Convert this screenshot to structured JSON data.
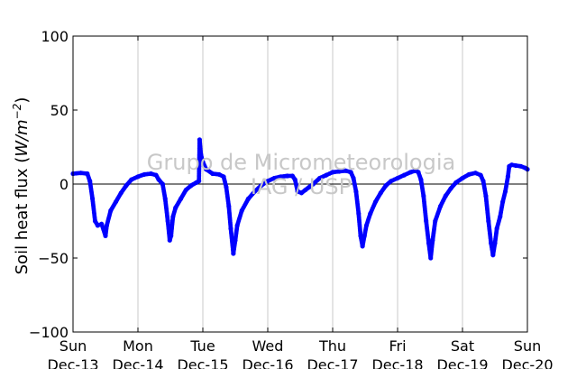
{
  "chart_data": {
    "type": "scatter",
    "ylabel": "Soil heat flux (W/m⁻²)",
    "ylabel_plain": "Soil heat flux (",
    "ylabel_unit": "W/m",
    "ylabel_exp": "−2",
    "ylabel_close": ")",
    "ylim": [
      -100,
      100
    ],
    "yticks": [
      {
        "value": 100,
        "label": "100"
      },
      {
        "value": 50,
        "label": "50"
      },
      {
        "value": 0,
        "label": "0"
      },
      {
        "value": -50,
        "label": "−50"
      },
      {
        "value": -100,
        "label": "−100"
      }
    ],
    "xlim": [
      0,
      7
    ],
    "xticks": [
      {
        "value": 0,
        "day": "Sun",
        "date": "Dec-13"
      },
      {
        "value": 1,
        "day": "Mon",
        "date": "Dec-14"
      },
      {
        "value": 2,
        "day": "Tue",
        "date": "Dec-15"
      },
      {
        "value": 3,
        "day": "Wed",
        "date": "Dec-16"
      },
      {
        "value": 4,
        "day": "Thu",
        "date": "Dec-17"
      },
      {
        "value": 5,
        "day": "Fri",
        "date": "Dec-18"
      },
      {
        "value": 6,
        "day": "Sat",
        "date": "Dec-19"
      },
      {
        "value": 7,
        "day": "Sun",
        "date": "Dec-20"
      }
    ],
    "grid": "vertical",
    "zero_line": true,
    "series": [
      {
        "color": "#0000ff",
        "points": [
          [
            0.0,
            7
          ],
          [
            0.12,
            7.5
          ],
          [
            0.22,
            7
          ],
          [
            0.26,
            2
          ],
          [
            0.3,
            -10
          ],
          [
            0.34,
            -25
          ],
          [
            0.38,
            -28
          ],
          [
            0.44,
            -27
          ],
          [
            0.5,
            -35
          ],
          [
            0.52,
            -28
          ],
          [
            0.58,
            -18
          ],
          [
            0.66,
            -12
          ],
          [
            0.74,
            -6
          ],
          [
            0.82,
            -1
          ],
          [
            0.9,
            3
          ],
          [
            1.0,
            5
          ],
          [
            1.1,
            6.5
          ],
          [
            1.2,
            7
          ],
          [
            1.28,
            6
          ],
          [
            1.32,
            3
          ],
          [
            1.38,
            0
          ],
          [
            1.42,
            -10
          ],
          [
            1.46,
            -25
          ],
          [
            1.49,
            -38
          ],
          [
            1.51,
            -35
          ],
          [
            1.54,
            -22
          ],
          [
            1.58,
            -16
          ],
          [
            1.66,
            -10
          ],
          [
            1.74,
            -4
          ],
          [
            1.82,
            -1
          ],
          [
            1.9,
            1
          ],
          [
            1.94,
            2
          ],
          [
            1.95,
            30
          ],
          [
            1.97,
            20
          ],
          [
            2.0,
            15
          ],
          [
            2.05,
            10
          ],
          [
            2.15,
            7
          ],
          [
            2.25,
            6.5
          ],
          [
            2.32,
            5
          ],
          [
            2.36,
            -2
          ],
          [
            2.4,
            -15
          ],
          [
            2.43,
            -30
          ],
          [
            2.47,
            -47
          ],
          [
            2.5,
            -38
          ],
          [
            2.53,
            -28
          ],
          [
            2.6,
            -18
          ],
          [
            2.7,
            -10
          ],
          [
            2.8,
            -5
          ],
          [
            2.9,
            -1
          ],
          [
            3.0,
            2
          ],
          [
            3.1,
            4
          ],
          [
            3.2,
            5
          ],
          [
            3.3,
            5.5
          ],
          [
            3.38,
            5.5
          ],
          [
            3.42,
            3
          ],
          [
            3.46,
            -5
          ],
          [
            3.52,
            -6
          ],
          [
            3.58,
            -4
          ],
          [
            3.64,
            -2
          ],
          [
            3.7,
            0
          ],
          [
            3.8,
            4
          ],
          [
            3.9,
            6
          ],
          [
            4.0,
            8
          ],
          [
            4.1,
            8.5
          ],
          [
            4.2,
            9
          ],
          [
            4.28,
            8
          ],
          [
            4.32,
            4
          ],
          [
            4.36,
            -5
          ],
          [
            4.4,
            -20
          ],
          [
            4.43,
            -35
          ],
          [
            4.46,
            -42
          ],
          [
            4.49,
            -35
          ],
          [
            4.52,
            -28
          ],
          [
            4.58,
            -20
          ],
          [
            4.66,
            -12
          ],
          [
            4.74,
            -6
          ],
          [
            4.82,
            -1
          ],
          [
            4.9,
            2
          ],
          [
            5.0,
            4
          ],
          [
            5.1,
            6
          ],
          [
            5.2,
            8
          ],
          [
            5.28,
            9
          ],
          [
            5.32,
            8
          ],
          [
            5.36,
            3
          ],
          [
            5.4,
            -8
          ],
          [
            5.44,
            -25
          ],
          [
            5.48,
            -40
          ],
          [
            5.51,
            -50
          ],
          [
            5.54,
            -38
          ],
          [
            5.58,
            -25
          ],
          [
            5.66,
            -15
          ],
          [
            5.74,
            -8
          ],
          [
            5.82,
            -3
          ],
          [
            5.9,
            1
          ],
          [
            6.0,
            4
          ],
          [
            6.1,
            6.5
          ],
          [
            6.2,
            7.5
          ],
          [
            6.28,
            6
          ],
          [
            6.32,
            2
          ],
          [
            6.36,
            -8
          ],
          [
            6.4,
            -25
          ],
          [
            6.44,
            -40
          ],
          [
            6.47,
            -48
          ],
          [
            6.5,
            -40
          ],
          [
            6.53,
            -30
          ],
          [
            6.58,
            -22
          ],
          [
            6.62,
            -12
          ],
          [
            6.66,
            -5
          ],
          [
            6.7,
            5
          ],
          [
            6.72,
            12
          ],
          [
            6.76,
            13
          ],
          [
            6.82,
            12.5
          ],
          [
            6.9,
            12
          ],
          [
            6.96,
            11
          ],
          [
            7.0,
            10
          ]
        ]
      }
    ],
    "watermark_lines": [
      "Grupo de Micrometeorologia",
      "IAG / USP"
    ]
  }
}
